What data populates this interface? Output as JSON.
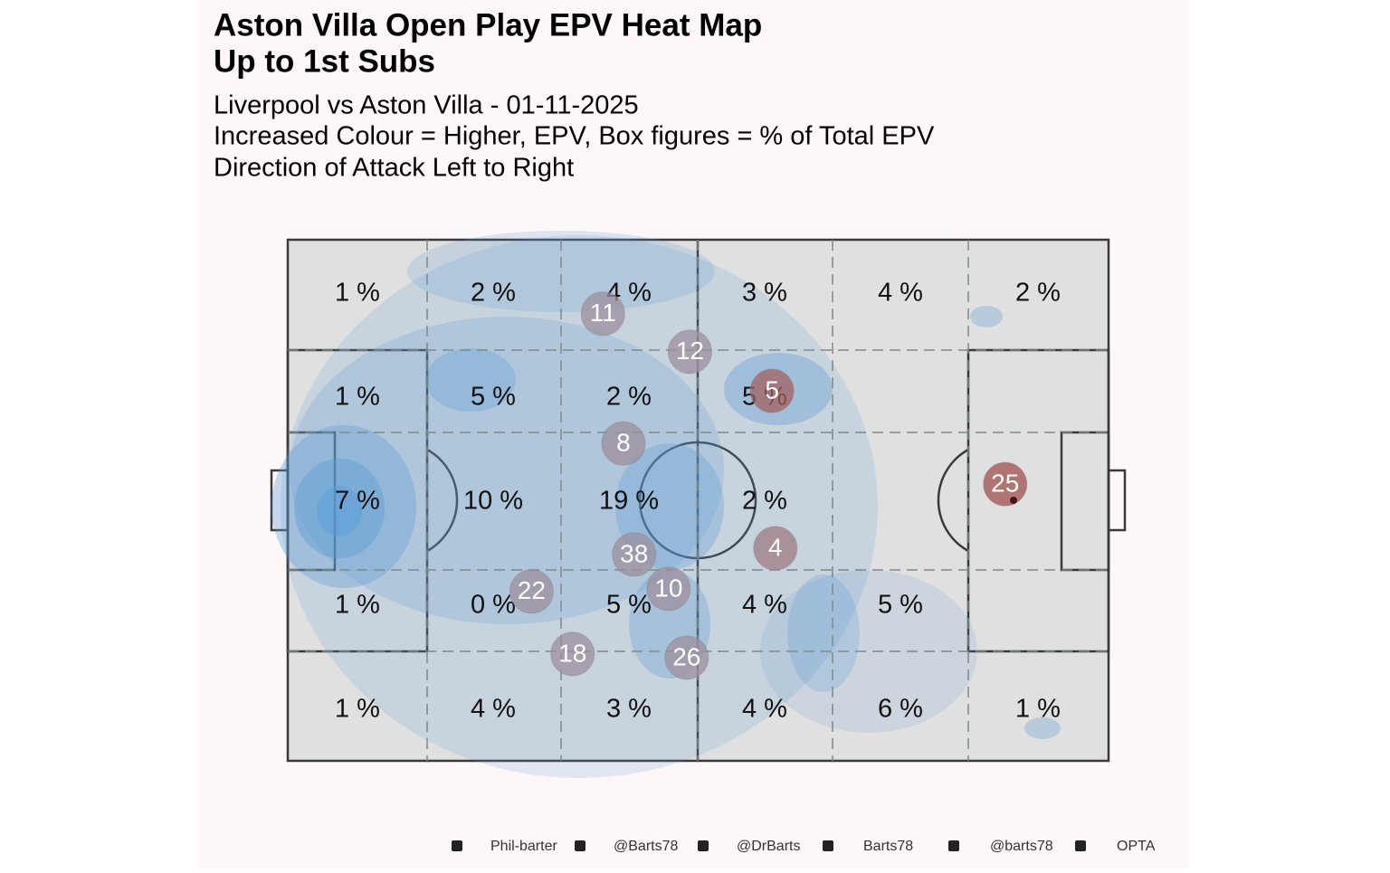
{
  "chart_data": {
    "type": "pitch-heatmap",
    "title": [
      "Aston Villa  Open Play EPV Heat Map",
      "Up to 1st Subs"
    ],
    "subtitle": [
      "Liverpool vs Aston Villa - 01-11-2025",
      "Increased Colour = Higher, EPV, Box figures = % of Total EPV",
      "Direction of Attack Left to Right"
    ],
    "xlim": [
      0,
      100
    ],
    "ylim": [
      0,
      100
    ],
    "zones": {
      "values": [
        [
          1,
          2,
          4,
          3,
          4,
          2
        ],
        [
          1,
          5,
          2,
          5,
          null,
          null
        ],
        [
          7,
          10,
          19,
          2,
          null,
          null
        ],
        [
          1,
          0,
          5,
          4,
          5,
          null
        ],
        [
          1,
          4,
          3,
          4,
          6,
          1
        ]
      ],
      "value_labels": [
        [
          "1 %",
          "2 %",
          "4 %",
          "3 %",
          "4 %",
          "2 %"
        ],
        [
          "1 %",
          "5 %",
          "2 %",
          "5 %",
          null,
          null
        ],
        [
          "7 %",
          "10 %",
          "19 %",
          "2 %",
          null,
          null
        ],
        [
          "1 %",
          "0 %",
          "5 %",
          "4 %",
          "5 %",
          null
        ],
        [
          "1 %",
          "4 %",
          "3 %",
          "4 %",
          "6 %",
          "1 %"
        ]
      ]
    },
    "players": [
      {
        "number": "11",
        "x": 38.4,
        "y": 14.2,
        "color": "#9d8f9d"
      },
      {
        "number": "12",
        "x": 49.0,
        "y": 21.5,
        "color": "#9d8f9d"
      },
      {
        "number": "5",
        "x": 59.0,
        "y": 29.0,
        "color": "#a0605e"
      },
      {
        "number": "8",
        "x": 40.9,
        "y": 39.1,
        "color": "#9d8f9d"
      },
      {
        "number": "25",
        "x": 87.4,
        "y": 46.9,
        "color": "#a0504d"
      },
      {
        "number": "4",
        "x": 59.4,
        "y": 59.2,
        "color": "#a07a80"
      },
      {
        "number": "38",
        "x": 42.2,
        "y": 60.4,
        "color": "#9d8f9d"
      },
      {
        "number": "10",
        "x": 46.4,
        "y": 67.0,
        "color": "#9d8f9d"
      },
      {
        "number": "22",
        "x": 29.7,
        "y": 67.5,
        "color": "#9d8f9d"
      },
      {
        "number": "18",
        "x": 34.7,
        "y": 79.5,
        "color": "#9d8f9d"
      },
      {
        "number": "26",
        "x": 48.6,
        "y": 80.2,
        "color": "#9d8f9d"
      }
    ],
    "footer": [
      "Phil-barter",
      "@Barts78",
      "@DrBarts",
      "Barts78",
      "@barts78",
      "OPTA"
    ]
  }
}
